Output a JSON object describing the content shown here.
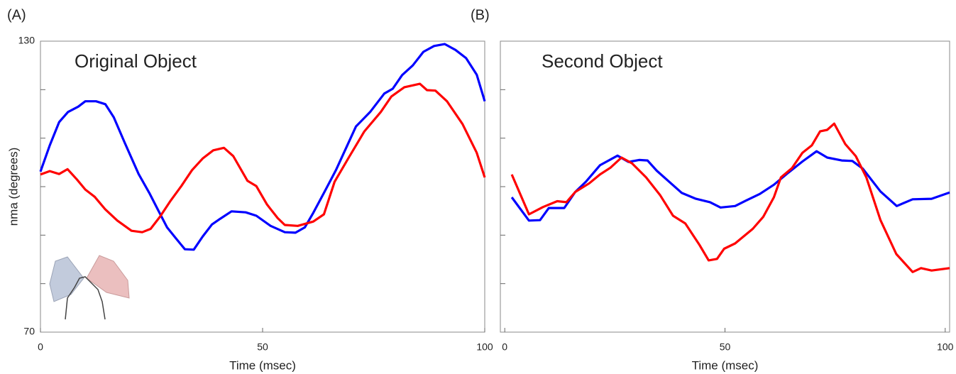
{
  "chart_data": [
    {
      "type": "line",
      "panel_label": "(A)",
      "annotation": "Original Object",
      "x_label": "Time (msec)",
      "y_label": "nma (degrees)",
      "xlim": [
        0,
        100
      ],
      "ylim": [
        70,
        130
      ],
      "xticks": [
        0,
        50,
        100
      ],
      "yticks": [
        70,
        130
      ],
      "minor_yticks": [
        80,
        90,
        100,
        110,
        120
      ],
      "series": [
        {
          "color": "#0000ff",
          "x": [
            0,
            2.1,
            4.2,
            6.2,
            8.5,
            10.1,
            12.5,
            14.6,
            16.5,
            18.9,
            22.1,
            24.5,
            26.4,
            28.5,
            30.6,
            32.5,
            34.5,
            36.5,
            38.6,
            40.5,
            43,
            46.2,
            48.6,
            51.8,
            55,
            57.4,
            59.5,
            61.4,
            63.8,
            66.5,
            71,
            74.2,
            77.4,
            79.3,
            81.4,
            83.8,
            86.2,
            88.6,
            91,
            93.4,
            95.8,
            98.2,
            100
          ],
          "values": [
            103.1,
            108.5,
            113.3,
            115.4,
            116.5,
            117.6,
            117.6,
            117,
            114.3,
            109.2,
            102.6,
            98.7,
            95.3,
            91.6,
            89.2,
            87.1,
            87,
            89.7,
            92.2,
            93.4,
            94.9,
            94.7,
            94,
            91.9,
            90.6,
            90.5,
            91.6,
            94.6,
            98.7,
            103.4,
            112.4,
            115.4,
            119.2,
            120.2,
            123,
            125,
            127.8,
            129,
            129.4,
            128.2,
            126.5,
            123.1,
            117.6
          ]
        },
        {
          "color": "#ff0000",
          "x": [
            0,
            2.1,
            4.2,
            6.1,
            8.2,
            10.1,
            12.2,
            14.6,
            17.3,
            20.5,
            22.9,
            24.8,
            26.9,
            29.3,
            31.7,
            34.1,
            36.5,
            38.9,
            41.3,
            43.4,
            46.6,
            48.6,
            51,
            53.4,
            55,
            57.9,
            61.4,
            63.8,
            66.2,
            69.4,
            72.9,
            76.6,
            79,
            81.9,
            85.4,
            87,
            88.9,
            91.5,
            95,
            98.2,
            100
          ],
          "values": [
            102.5,
            103.2,
            102.6,
            103.6,
            101.5,
            99.4,
            97.9,
            95.3,
            93,
            90.9,
            90.6,
            91.3,
            93.8,
            97.1,
            100.1,
            103.4,
            105.8,
            107.5,
            108,
            106.3,
            101.2,
            100.1,
            96.3,
            93.5,
            92.1,
            91.9,
            92.8,
            94.3,
            101,
            106,
            111.4,
            115.4,
            118.6,
            120.5,
            121.2,
            119.9,
            119.8,
            117.6,
            112.9,
            107,
            101.9
          ]
        }
      ]
    },
    {
      "type": "line",
      "panel_label": "(B)",
      "annotation": "Second Object",
      "x_label": "Time (msec)",
      "xlim": [
        -1,
        101
      ],
      "ylim": [
        70,
        130
      ],
      "xticks": [
        0,
        50,
        100
      ],
      "minor_yticks": [
        80,
        90,
        100,
        110,
        120
      ],
      "series": [
        {
          "color": "#0000ff",
          "x": [
            1.6,
            5.5,
            8,
            10,
            13.5,
            16,
            18.4,
            21.6,
            25.6,
            28.1,
            30.5,
            32.4,
            34.5,
            37.7,
            40.2,
            43.4,
            46.6,
            49,
            52.3,
            54.7,
            57.9,
            61.1,
            64.4,
            67.6,
            70.8,
            73.2,
            76.5,
            78.9,
            81.3,
            85.3,
            89,
            92.6,
            96.9,
            101
          ],
          "values": [
            97.8,
            93,
            93.1,
            95.6,
            95.6,
            98.9,
            101,
            104.4,
            106.4,
            105.1,
            105.5,
            105.4,
            103.3,
            100.7,
            98.7,
            97.5,
            96.8,
            95.7,
            96,
            97.1,
            98.5,
            100.4,
            102.9,
            105.2,
            107.3,
            106,
            105.4,
            105.3,
            103.7,
            99,
            96,
            97.4,
            97.5,
            98.8
          ]
        },
        {
          "color": "#ff0000",
          "x": [
            1.6,
            5.5,
            8.7,
            11.9,
            14,
            16,
            19.2,
            21.6,
            24,
            26.5,
            28.9,
            32.1,
            35.3,
            38.2,
            41,
            44.2,
            46.3,
            48.2,
            49.8,
            52.3,
            56.3,
            58.7,
            61.1,
            62.7,
            65.2,
            67.6,
            69.7,
            71.6,
            73.2,
            74.8,
            77.3,
            79.7,
            82.1,
            85.3,
            88.9,
            92.6,
            94.5,
            96.9,
            101
          ],
          "values": [
            102.5,
            94.3,
            95.8,
            97,
            96.8,
            98.9,
            100.7,
            102.5,
            103.9,
            106,
            104.8,
            101.9,
            98.2,
            94,
            92.4,
            88,
            84.8,
            85.1,
            87.2,
            88.3,
            91.3,
            93.8,
            97.8,
            101.9,
            103.8,
            107,
            108.5,
            111.4,
            111.7,
            113,
            108.8,
            106.3,
            101.9,
            93.1,
            86.1,
            82.4,
            83.2,
            82.7,
            83.2
          ]
        }
      ]
    }
  ]
}
